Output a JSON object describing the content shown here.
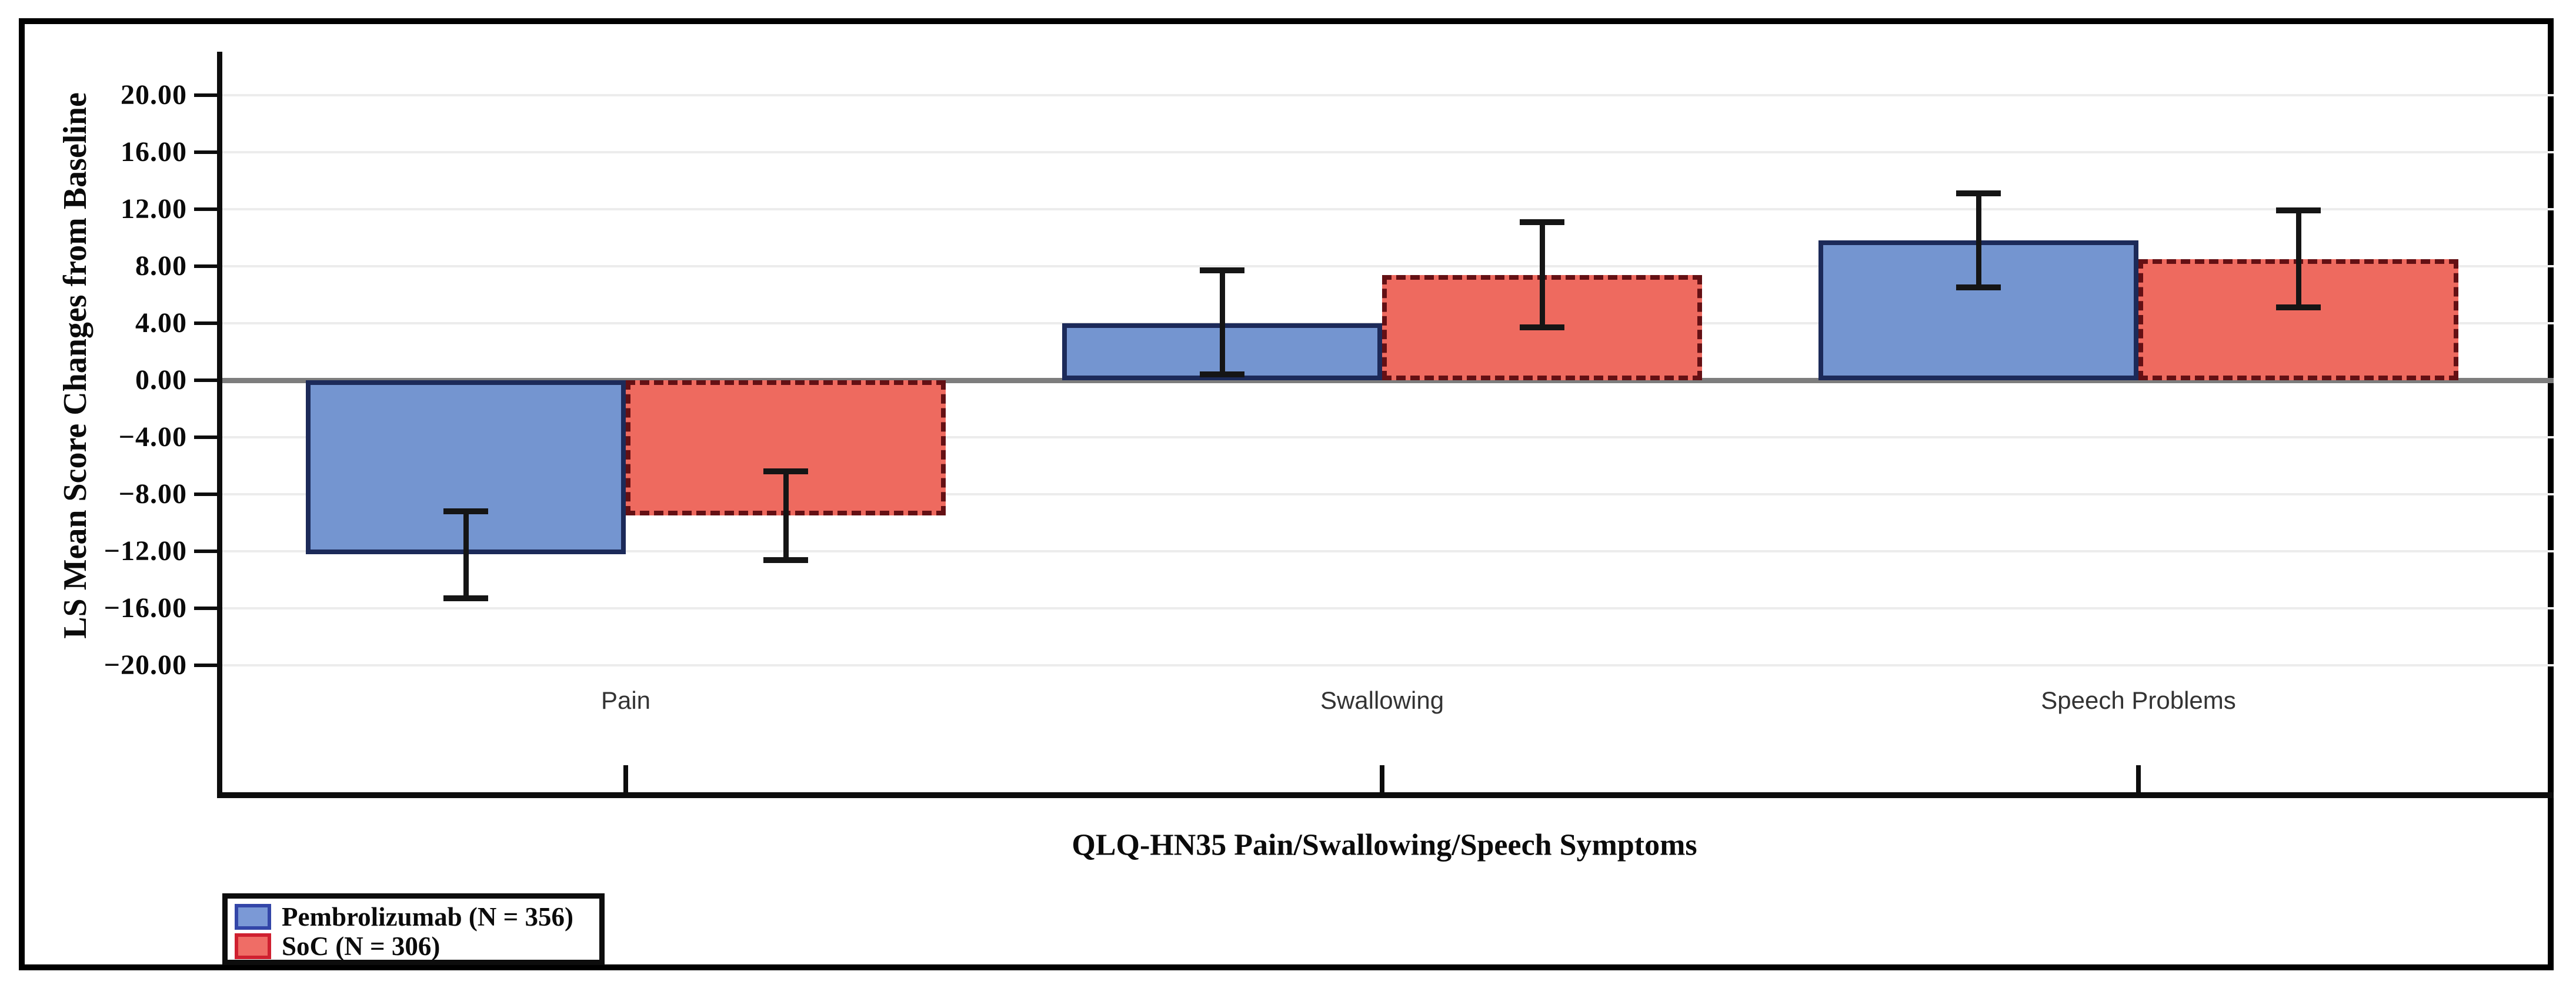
{
  "chart_data": {
    "type": "bar",
    "title": "",
    "xlabel": "QLQ-HN35 Pain/Swallowing/Speech Symptoms",
    "ylabel": "LS Mean Score Changes from Baseline",
    "categories": [
      "Pain",
      "Swallowing",
      "Speech Problems"
    ],
    "series": [
      {
        "name": "Pembrolizumab (N = 356)",
        "values": [
          -12.2,
          4.0,
          9.8
        ],
        "error_low": [
          -15.3,
          0.4,
          6.5
        ],
        "error_high": [
          -9.2,
          7.7,
          13.1
        ],
        "fill_color": "#7495D0",
        "border_color": "#1C2A59",
        "border_style": "solid"
      },
      {
        "name": "SoC (N = 306)",
        "values": [
          -9.5,
          7.4,
          8.5
        ],
        "error_low": [
          -12.6,
          3.7,
          5.1
        ],
        "error_high": [
          -6.4,
          11.1,
          11.9
        ],
        "fill_color": "#EE6A5F",
        "border_color": "#641014",
        "border_style": "dashed"
      }
    ],
    "ylim": [
      -20,
      20
    ],
    "ytick_step": 4,
    "ytick_labels": [
      "20.00",
      "16.00",
      "12.00",
      "8.00",
      "4.00",
      "0.00",
      "−4.00",
      "−8.00",
      "−12.00",
      "−16.00",
      "−20.00"
    ],
    "ytick_values": [
      20,
      16,
      12,
      8,
      4,
      0,
      -4,
      -8,
      -12,
      -16,
      -20
    ],
    "grid": true,
    "grid_color": "#ECECEC",
    "zero_line_color": "#7D7D7D",
    "error_bar_color": "#151515",
    "legend_position": "bottom-left"
  }
}
